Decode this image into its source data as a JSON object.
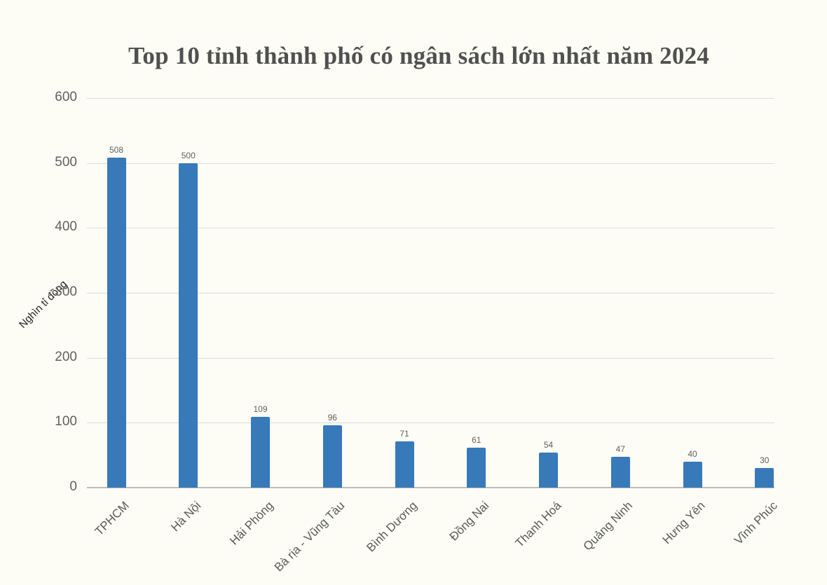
{
  "chart_data": {
    "type": "bar",
    "title": "Top 10 tỉnh thành phố có ngân sách lớn nhất năm 2024",
    "xlabel": "",
    "ylabel": "Nghìn tỉ đồng",
    "ylim": [
      0,
      600
    ],
    "yticks": [
      "0",
      "100",
      "200",
      "300",
      "400",
      "500",
      "600"
    ],
    "grid": true,
    "legend": null,
    "categories": [
      "TPHCM",
      "Hà Nội",
      "Hải Phòng",
      "Bà rịa - Vũng Tàu",
      "Bình Dương",
      "Đồng Nai",
      "Thanh Hoá",
      "Quảng Ninh",
      "Hưng Yên",
      "Vĩnh Phúc"
    ],
    "values": [
      508,
      500,
      109,
      96,
      71,
      61,
      54,
      47,
      40,
      30
    ],
    "data_labels": [
      "508",
      "500",
      "109",
      "96",
      "71",
      "61",
      "54",
      "47",
      "40",
      "30"
    ],
    "colors": {
      "bar": "#3779b9",
      "background": "#fdfdf6",
      "grid": "#dcdcdc"
    }
  }
}
